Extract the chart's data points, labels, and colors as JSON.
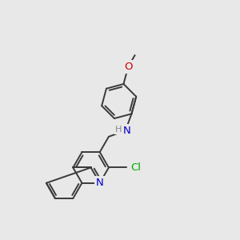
{
  "background_color": "#e8e8e8",
  "bond_color": "#3a3a3a",
  "bond_width": 1.4,
  "atom_colors": {
    "N": "#0000cc",
    "O": "#cc0000",
    "Cl": "#00aa00",
    "H": "#888888"
  },
  "font_size": 9.5,
  "fig_size": [
    3.0,
    3.0
  ],
  "dpi": 100,
  "bl": 0.75
}
